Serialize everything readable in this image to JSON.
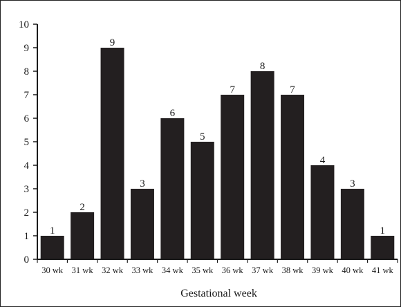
{
  "chart_data": {
    "type": "bar",
    "categories": [
      "30 wk",
      "31 wk",
      "32 wk",
      "33 wk",
      "34 wk",
      "35 wk",
      "36 wk",
      "37 wk",
      "38 wk",
      "39 wk",
      "40 wk",
      "41 wk"
    ],
    "values": [
      1,
      2,
      9,
      3,
      6,
      5,
      7,
      8,
      7,
      4,
      3,
      1
    ],
    "title": "",
    "xlabel": "Gestational week",
    "ylabel": "",
    "ylim": [
      0,
      10
    ],
    "yticks": [
      0,
      1,
      2,
      3,
      4,
      5,
      6,
      7,
      8,
      9,
      10
    ],
    "grid": false,
    "bar_color": "#231f20"
  }
}
